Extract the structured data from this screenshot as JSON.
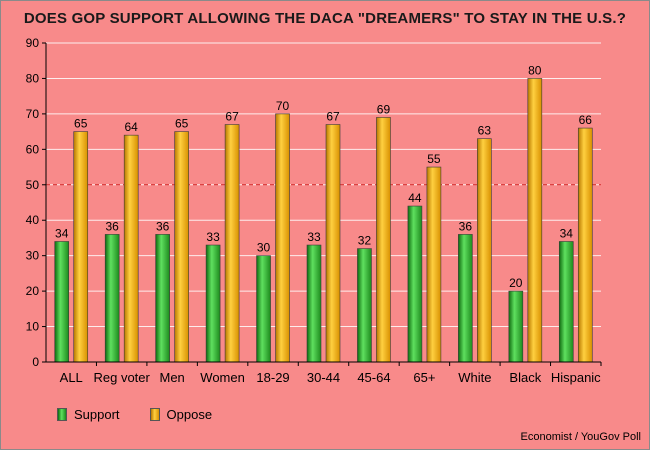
{
  "title": "DOES GOP SUPPORT ALLOWING THE DACA \"DREAMERS\" TO STAY IN THE U.S.?",
  "source": "Economist / YouGov Poll",
  "colors": {
    "background": "#f88a8a",
    "support": "#2aa02a",
    "oppose": "#f2a900",
    "reference_line": "#d11a1a"
  },
  "chart_data": {
    "type": "bar",
    "title": "DOES GOP SUPPORT ALLOWING THE DACA \"DREAMERS\" TO STAY IN THE U.S.?",
    "xlabel": "",
    "ylabel": "",
    "categories": [
      "ALL",
      "Reg voter",
      "Men",
      "Women",
      "18-29",
      "30-44",
      "45-64",
      "65+",
      "White",
      "Black",
      "Hispanic"
    ],
    "series": [
      {
        "name": "Support",
        "values": [
          34,
          36,
          36,
          33,
          30,
          33,
          32,
          44,
          36,
          20,
          34
        ]
      },
      {
        "name": "Oppose",
        "values": [
          65,
          64,
          65,
          67,
          70,
          67,
          69,
          55,
          63,
          80,
          66
        ]
      }
    ],
    "ylim": [
      0,
      90
    ],
    "yticks": [
      0,
      10,
      20,
      30,
      40,
      50,
      60,
      70,
      80,
      90
    ],
    "reference_line": 50,
    "grid": true,
    "legend_position": "bottom-left",
    "data_labels": true
  }
}
